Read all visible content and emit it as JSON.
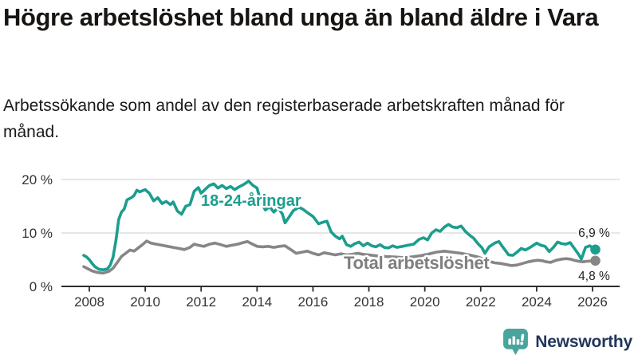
{
  "header": {
    "title": "Högre arbetslöshet bland unga än bland äldre i Vara",
    "subtitle": "Arbetssökande som andel av den registerbaserade arbetskraften månad för månad."
  },
  "footer": {
    "brand": "Newsworthy",
    "logo_icon": "bar-chart-speech-bubble-icon",
    "logo_icon_color": "#48a59d",
    "logo_text_color": "#21365b"
  },
  "colors": {
    "grid": "#dedede",
    "axis": "#2e2e2e",
    "text": "#333333"
  },
  "chart_data": {
    "type": "line",
    "title": "Högre arbetslöshet bland unga än bland äldre i Vara",
    "subtitle": "Arbetssökande som andel av den registerbaserade arbetskraften månad för månad.",
    "xlabel": "",
    "ylabel": "",
    "xlim": [
      2007.7,
      2026.6
    ],
    "ylim": [
      0,
      21.5
    ],
    "grid": "horizontal-only",
    "legend_position": "inline-labels-on-lines",
    "x_ticks": [
      2008,
      2010,
      2012,
      2014,
      2016,
      2018,
      2020,
      2022,
      2024,
      2026
    ],
    "y_ticks": [
      {
        "value": 0,
        "label": "0 %"
      },
      {
        "value": 10,
        "label": "10 %"
      },
      {
        "value": 20,
        "label": "20 %"
      }
    ],
    "series": [
      {
        "name": "Total arbetslöshet",
        "color": "#7f7f7f",
        "line_color": "#868686",
        "end_value": 4.8,
        "end_label": "4,8 %",
        "points": [
          [
            2007.8,
            3.7
          ],
          [
            2007.95,
            3.3
          ],
          [
            2008.1,
            2.9
          ],
          [
            2008.3,
            2.6
          ],
          [
            2008.5,
            2.5
          ],
          [
            2008.7,
            2.8
          ],
          [
            2008.85,
            3.4
          ],
          [
            2009.0,
            4.5
          ],
          [
            2009.15,
            5.6
          ],
          [
            2009.3,
            6.2
          ],
          [
            2009.45,
            6.8
          ],
          [
            2009.6,
            6.6
          ],
          [
            2009.75,
            7.2
          ],
          [
            2009.9,
            7.8
          ],
          [
            2010.05,
            8.5
          ],
          [
            2010.2,
            8.1
          ],
          [
            2010.4,
            7.9
          ],
          [
            2010.6,
            7.7
          ],
          [
            2010.8,
            7.5
          ],
          [
            2011.0,
            7.3
          ],
          [
            2011.2,
            7.1
          ],
          [
            2011.4,
            6.9
          ],
          [
            2011.6,
            7.3
          ],
          [
            2011.75,
            7.9
          ],
          [
            2011.9,
            7.7
          ],
          [
            2012.1,
            7.5
          ],
          [
            2012.3,
            7.9
          ],
          [
            2012.5,
            8.1
          ],
          [
            2012.7,
            7.8
          ],
          [
            2012.9,
            7.5
          ],
          [
            2013.1,
            7.7
          ],
          [
            2013.3,
            7.9
          ],
          [
            2013.5,
            8.2
          ],
          [
            2013.65,
            8.4
          ],
          [
            2013.8,
            8.0
          ],
          [
            2014.0,
            7.5
          ],
          [
            2014.2,
            7.4
          ],
          [
            2014.4,
            7.5
          ],
          [
            2014.6,
            7.3
          ],
          [
            2014.8,
            7.5
          ],
          [
            2015.0,
            7.6
          ],
          [
            2015.2,
            6.9
          ],
          [
            2015.4,
            6.2
          ],
          [
            2015.6,
            6.4
          ],
          [
            2015.8,
            6.6
          ],
          [
            2016.0,
            6.2
          ],
          [
            2016.2,
            5.9
          ],
          [
            2016.4,
            6.3
          ],
          [
            2016.6,
            6.1
          ],
          [
            2016.8,
            5.9
          ],
          [
            2017.0,
            6.1
          ],
          [
            2017.2,
            5.9
          ],
          [
            2017.4,
            6.0
          ],
          [
            2017.6,
            6.2
          ],
          [
            2017.8,
            6.0
          ],
          [
            2018.0,
            5.9
          ],
          [
            2018.3,
            5.7
          ],
          [
            2018.6,
            5.6
          ],
          [
            2018.9,
            5.5
          ],
          [
            2019.2,
            5.4
          ],
          [
            2019.5,
            5.5
          ],
          [
            2019.8,
            5.7
          ],
          [
            2020.1,
            6.0
          ],
          [
            2020.4,
            6.4
          ],
          [
            2020.7,
            6.6
          ],
          [
            2021.0,
            6.4
          ],
          [
            2021.3,
            6.2
          ],
          [
            2021.6,
            5.9
          ],
          [
            2021.9,
            5.5
          ],
          [
            2022.1,
            5.1
          ],
          [
            2022.3,
            4.7
          ],
          [
            2022.5,
            4.4
          ],
          [
            2022.7,
            4.3
          ],
          [
            2022.9,
            4.1
          ],
          [
            2023.1,
            3.9
          ],
          [
            2023.3,
            4.0
          ],
          [
            2023.5,
            4.3
          ],
          [
            2023.7,
            4.6
          ],
          [
            2023.9,
            4.8
          ],
          [
            2024.05,
            4.9
          ],
          [
            2024.2,
            4.8
          ],
          [
            2024.35,
            4.6
          ],
          [
            2024.5,
            4.5
          ],
          [
            2024.7,
            4.9
          ],
          [
            2024.9,
            5.1
          ],
          [
            2025.05,
            5.2
          ],
          [
            2025.2,
            5.1
          ],
          [
            2025.35,
            4.9
          ],
          [
            2025.5,
            4.7
          ],
          [
            2025.65,
            4.6
          ],
          [
            2025.8,
            4.7
          ],
          [
            2026.1,
            4.8
          ]
        ]
      },
      {
        "name": "18-24-åringar",
        "color": "#1b9e8e",
        "line_color": "#1b9e8e",
        "end_value": 6.9,
        "end_label": "6,9 %",
        "points": [
          [
            2007.8,
            5.8
          ],
          [
            2007.9,
            5.5
          ],
          [
            2008.0,
            5.0
          ],
          [
            2008.1,
            4.3
          ],
          [
            2008.2,
            3.7
          ],
          [
            2008.35,
            3.2
          ],
          [
            2008.5,
            3.1
          ],
          [
            2008.65,
            3.3
          ],
          [
            2008.75,
            4.0
          ],
          [
            2008.85,
            5.5
          ],
          [
            2008.95,
            8.5
          ],
          [
            2009.05,
            12.5
          ],
          [
            2009.15,
            13.9
          ],
          [
            2009.25,
            14.5
          ],
          [
            2009.35,
            16.2
          ],
          [
            2009.5,
            16.6
          ],
          [
            2009.6,
            17.0
          ],
          [
            2009.7,
            18.0
          ],
          [
            2009.8,
            17.7
          ],
          [
            2009.9,
            17.9
          ],
          [
            2010.0,
            18.1
          ],
          [
            2010.15,
            17.4
          ],
          [
            2010.3,
            16.0
          ],
          [
            2010.45,
            16.6
          ],
          [
            2010.6,
            15.5
          ],
          [
            2010.75,
            15.9
          ],
          [
            2010.9,
            15.3
          ],
          [
            2011.0,
            15.8
          ],
          [
            2011.15,
            14.1
          ],
          [
            2011.3,
            13.5
          ],
          [
            2011.45,
            15.0
          ],
          [
            2011.6,
            15.3
          ],
          [
            2011.75,
            17.8
          ],
          [
            2011.9,
            18.5
          ],
          [
            2012.0,
            17.4
          ],
          [
            2012.15,
            18.2
          ],
          [
            2012.3,
            18.9
          ],
          [
            2012.45,
            19.2
          ],
          [
            2012.6,
            18.4
          ],
          [
            2012.75,
            18.9
          ],
          [
            2012.9,
            18.3
          ],
          [
            2013.05,
            18.7
          ],
          [
            2013.2,
            18.1
          ],
          [
            2013.35,
            18.6
          ],
          [
            2013.5,
            19.0
          ],
          [
            2013.7,
            19.7
          ],
          [
            2013.85,
            18.9
          ],
          [
            2014.0,
            18.4
          ],
          [
            2014.15,
            15.6
          ],
          [
            2014.3,
            14.3
          ],
          [
            2014.45,
            14.9
          ],
          [
            2014.6,
            13.9
          ],
          [
            2014.75,
            14.7
          ],
          [
            2014.9,
            13.6
          ],
          [
            2015.0,
            11.9
          ],
          [
            2015.15,
            13.0
          ],
          [
            2015.3,
            14.2
          ],
          [
            2015.5,
            14.8
          ],
          [
            2015.65,
            14.4
          ],
          [
            2015.8,
            13.8
          ],
          [
            2016.0,
            13.1
          ],
          [
            2016.2,
            11.7
          ],
          [
            2016.35,
            12.0
          ],
          [
            2016.5,
            12.2
          ],
          [
            2016.65,
            10.2
          ],
          [
            2016.8,
            9.4
          ],
          [
            2016.95,
            8.9
          ],
          [
            2017.05,
            9.4
          ],
          [
            2017.2,
            7.8
          ],
          [
            2017.35,
            7.5
          ],
          [
            2017.5,
            8.0
          ],
          [
            2017.65,
            8.3
          ],
          [
            2017.8,
            7.6
          ],
          [
            2017.95,
            8.1
          ],
          [
            2018.1,
            7.6
          ],
          [
            2018.25,
            7.4
          ],
          [
            2018.4,
            7.8
          ],
          [
            2018.55,
            7.3
          ],
          [
            2018.7,
            7.2
          ],
          [
            2018.85,
            7.6
          ],
          [
            2019.0,
            7.3
          ],
          [
            2019.2,
            7.5
          ],
          [
            2019.4,
            7.7
          ],
          [
            2019.6,
            7.9
          ],
          [
            2019.8,
            8.8
          ],
          [
            2019.95,
            9.1
          ],
          [
            2020.1,
            8.7
          ],
          [
            2020.25,
            10.0
          ],
          [
            2020.4,
            10.6
          ],
          [
            2020.55,
            10.3
          ],
          [
            2020.7,
            11.1
          ],
          [
            2020.85,
            11.6
          ],
          [
            2021.0,
            11.1
          ],
          [
            2021.15,
            11.0
          ],
          [
            2021.3,
            11.3
          ],
          [
            2021.45,
            10.3
          ],
          [
            2021.6,
            9.6
          ],
          [
            2021.75,
            9.0
          ],
          [
            2021.9,
            8.0
          ],
          [
            2022.05,
            7.2
          ],
          [
            2022.15,
            6.2
          ],
          [
            2022.3,
            7.4
          ],
          [
            2022.5,
            8.1
          ],
          [
            2022.65,
            8.4
          ],
          [
            2022.8,
            7.3
          ],
          [
            2023.0,
            5.9
          ],
          [
            2023.15,
            5.8
          ],
          [
            2023.3,
            6.4
          ],
          [
            2023.45,
            7.1
          ],
          [
            2023.6,
            6.8
          ],
          [
            2023.8,
            7.4
          ],
          [
            2024.0,
            8.1
          ],
          [
            2024.15,
            7.7
          ],
          [
            2024.3,
            7.5
          ],
          [
            2024.45,
            6.5
          ],
          [
            2024.6,
            7.3
          ],
          [
            2024.75,
            8.3
          ],
          [
            2024.9,
            8.0
          ],
          [
            2025.05,
            7.9
          ],
          [
            2025.2,
            8.2
          ],
          [
            2025.35,
            7.1
          ],
          [
            2025.5,
            6.0
          ],
          [
            2025.6,
            5.1
          ],
          [
            2025.75,
            7.3
          ],
          [
            2025.9,
            7.6
          ],
          [
            2026.1,
            6.9
          ]
        ]
      }
    ]
  }
}
